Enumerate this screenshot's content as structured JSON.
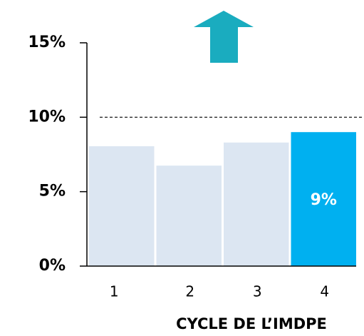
{
  "chart_data": {
    "type": "bar",
    "x_label": "CYCLE DE L’IMDPE",
    "categories": [
      "1",
      "2",
      "3",
      "4"
    ],
    "values": [
      8.05,
      6.75,
      8.3,
      9.0
    ],
    "value_labels": [
      null,
      null,
      null,
      "9%"
    ],
    "colors": [
      "#dce6f2",
      "#dce6f2",
      "#dce6f2",
      "#00b0f0"
    ],
    "ylim": [
      0,
      15
    ],
    "yticks": [
      {
        "value": 0,
        "label": "0%"
      },
      {
        "value": 5,
        "label": "5%"
      },
      {
        "value": 10,
        "label": "10%"
      },
      {
        "value": 15,
        "label": "15%"
      }
    ],
    "reference_line": 10
  }
}
